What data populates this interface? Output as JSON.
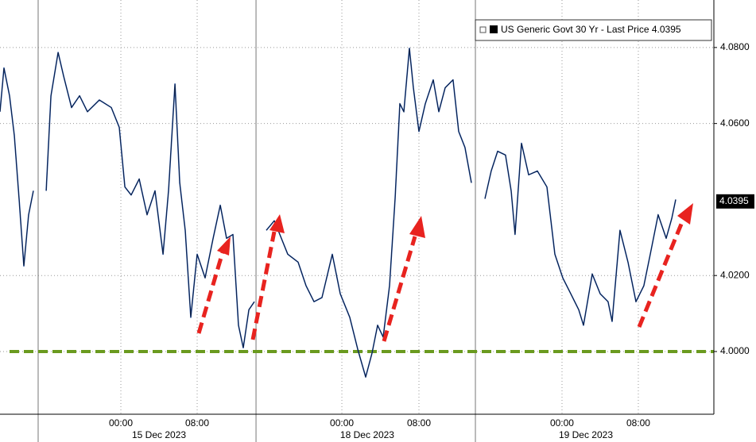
{
  "chart_data": {
    "type": "line",
    "series": [
      {
        "name": "US Generic Govt 30 Yr - Last Price",
        "color": "#1f4fa8",
        "x": [
          -12.67,
          -12.25,
          -11.67,
          -11.17,
          -10.67,
          -10.17,
          -9.67,
          -9.17,
          null,
          -7.83,
          -7.33,
          -6.58,
          -6.0,
          -5.17,
          -4.33,
          -3.5,
          -2.25,
          -1.0,
          -0.17,
          0.42,
          1.08,
          1.92,
          2.75,
          3.58,
          4.42,
          5.0,
          5.67,
          6.17,
          6.75,
          7.33,
          8.0,
          8.83,
          9.67,
          10.42,
          11.08,
          11.75,
          12.33,
          12.83,
          13.42,
          14.0,
          null,
          15.25,
          16.08,
          16.67,
          17.5,
          18.58,
          19.42,
          20.25,
          21.08,
          22.17,
          23.0,
          24.0,
          24.83,
          25.67,
          26.33,
          26.92,
          27.5,
          28.17,
          28.75,
          29.25,
          29.67,
          30.25,
          30.67,
          31.25,
          31.92,
          32.75,
          33.33,
          34.0,
          34.83,
          35.42,
          36.08,
          36.75,
          null,
          38.17,
          38.83,
          39.5,
          40.33,
          40.92,
          41.33,
          42.0,
          42.75,
          43.67,
          44.67,
          45.5,
          46.33,
          47.17,
          48.0,
          48.5,
          49.42,
          50.25,
          51.08,
          51.5,
          52.33,
          53.17,
          54.0,
          54.83,
          55.5,
          56.33,
          57.17,
          57.75,
          58.17
        ],
        "values": [
          4.0631,
          4.0746,
          4.0673,
          4.0569,
          4.0402,
          4.0225,
          4.036,
          4.0423,
          null,
          4.0423,
          4.0673,
          4.0787,
          4.0725,
          4.0642,
          4.0673,
          4.0631,
          4.0662,
          4.0642,
          4.059,
          4.0433,
          4.0412,
          4.0454,
          4.036,
          4.0423,
          4.0256,
          4.0423,
          4.0704,
          4.0444,
          4.0319,
          4.009,
          4.0256,
          4.0194,
          4.0298,
          4.0385,
          4.0298,
          4.0308,
          4.0069,
          4.001,
          4.011,
          4.0131,
          null,
          4.0319,
          4.0344,
          4.0308,
          4.0256,
          4.0235,
          4.0173,
          4.0131,
          4.0142,
          4.0256,
          4.0152,
          4.009,
          4.0006,
          3.9933,
          3.9996,
          4.0069,
          4.0038,
          4.0173,
          4.0402,
          4.0652,
          4.0631,
          4.0798,
          4.0694,
          4.0579,
          4.0652,
          4.0715,
          4.0631,
          4.0694,
          4.0715,
          4.0579,
          4.0537,
          4.0444,
          null,
          4.0402,
          4.0475,
          4.0527,
          4.0517,
          4.0423,
          4.0308,
          4.0548,
          4.0465,
          4.0475,
          4.0433,
          4.0256,
          4.0194,
          4.0152,
          4.011,
          4.0069,
          4.0204,
          4.0152,
          4.0131,
          4.0079,
          4.0319,
          4.0235,
          4.0131,
          4.0173,
          4.0256,
          4.036,
          4.0298,
          4.035,
          4.04
        ]
      }
    ],
    "last_price": 4.0395,
    "hline": {
      "value": 4,
      "color": "#6a9a1f"
    },
    "xlim": [
      -12.67,
      62.17
    ],
    "ylim": [
      3.9835,
      4.0925
    ],
    "yticks": [
      {
        "value": 4,
        "label": "4.0000"
      },
      {
        "value": 4.02,
        "label": "4.0200"
      },
      {
        "value": 4.06,
        "label": "4.0600"
      },
      {
        "value": 4.08,
        "label": "4.0800"
      }
    ],
    "xticks": [
      {
        "value": 0,
        "label": "00:00"
      },
      {
        "value": 8,
        "label": "08:00"
      },
      {
        "value": 23.17,
        "label": "00:00"
      },
      {
        "value": 31.25,
        "label": "08:00"
      },
      {
        "value": 46.25,
        "label": "00:00"
      },
      {
        "value": 54.25,
        "label": "08:00"
      }
    ],
    "date_labels": [
      {
        "value": 4,
        "label": "15 Dec 2023"
      },
      {
        "value": 25.83,
        "label": "18 Dec 2023"
      },
      {
        "value": 48.75,
        "label": "19 Dec 2023"
      }
    ],
    "session_breaks": [
      -8.67,
      14.17,
      37.17
    ],
    "grid": true
  }
}
